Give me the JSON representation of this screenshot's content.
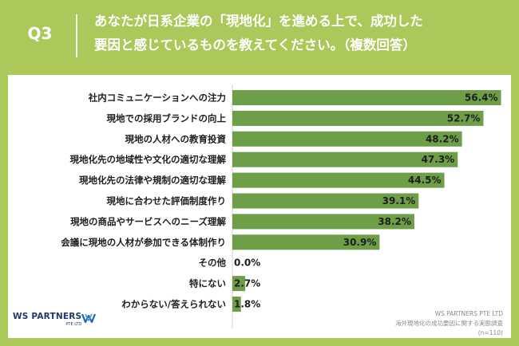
{
  "header": {
    "q_label": "Q3",
    "question": "あなたが日系企業の「現地化」を進める上で、成功した\n要因と感じているものを教えてください。（複数回答）"
  },
  "colors": {
    "background": "#abc95a",
    "bar": "#6e9e47",
    "panel": "#ffffff",
    "axis": "#cfcfcf"
  },
  "chart_data": {
    "type": "bar",
    "orientation": "horizontal",
    "categories": [
      "社内コミュニケーションへの注力",
      "現地での採用ブランドの向上",
      "現地の人材への教育投資",
      "現地化先の地域性や文化の適切な理解",
      "現地化先の法律や規制の適切な理解",
      "現地に合わせた評価制度作り",
      "現地の商品やサービスへのニーズ理解",
      "会議に現地の人材が参加できる体制作り",
      "その他",
      "特にない",
      "わからない/答えられない"
    ],
    "values": [
      56.4,
      52.7,
      48.2,
      47.3,
      44.5,
      39.1,
      38.2,
      30.9,
      0.0,
      2.7,
      1.8
    ],
    "value_labels": [
      "56.4%",
      "52.7%",
      "48.2%",
      "47.3%",
      "44.5%",
      "39.1%",
      "38.2%",
      "30.9%",
      "0.0%",
      "2.7%",
      "1.8%"
    ],
    "xlim": [
      0,
      60
    ],
    "grid": false
  },
  "logo": {
    "name": "WS PARTNERS",
    "sub": "PTE LTD",
    "icon": "ws-partners-logo-icon"
  },
  "source": {
    "company": "WS PARTNERS PTE LTD",
    "survey": "海外現地化の成功要因に関する実態調査",
    "n": "(n=110)"
  }
}
